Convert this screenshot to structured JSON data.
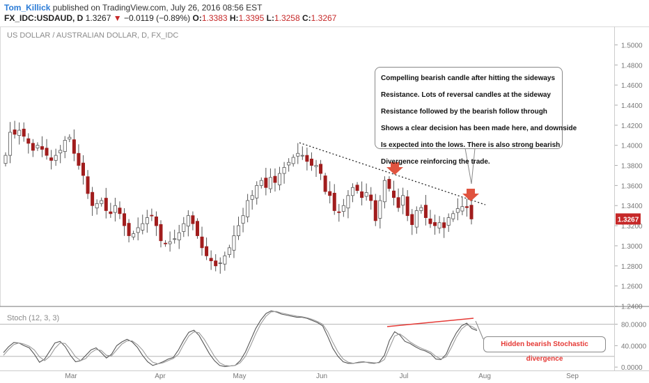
{
  "header": {
    "author": "Tom_Killick",
    "published": " published on TradingView.com, July 26, 2016 08:56 EST",
    "symbol": "FX_IDC:USDAUD, D",
    "last": "1.3267",
    "arrow": "▼",
    "change": "−0.0119 (−0.89%)",
    "o_label": "O:",
    "o_value": "1.3383",
    "h_label": "H:",
    "h_value": "1.3395",
    "l_label": "L:",
    "l_value": "1.3258",
    "c_label": "C:",
    "c_value": "1.3267"
  },
  "annotation": {
    "lines": [
      "Compelling bearish candle after hitting the sideways",
      "Resistance. Lots of reversal candles at the sideway",
      "Resistance followed by the bearish follow through",
      "Shows a clear decision has been made here, and downside",
      "Is expected into the lows. There is also strong bearish",
      "Divergence reinforcing the trade."
    ]
  },
  "stoch_note": "Hidden bearish Stochastic divergence",
  "colors": {
    "up_body": "#ffffff",
    "down_body": "#a11d1d",
    "wick": "#555555",
    "price_tag": "#c62828",
    "arrow": "#e0533f",
    "divergence_line": "#e53935",
    "stoch_k": "#555555",
    "stoch_d": "#9a9a9a"
  },
  "chart_data": [
    {
      "type": "candlestick",
      "title": "US DOLLAR / AUSTRALIAN DOLLAR, D, FX_IDC",
      "ylim": [
        1.24,
        1.51
      ],
      "y_ticks": [
        "1.5000",
        "1.4800",
        "1.4600",
        "1.4400",
        "1.4200",
        "1.4000",
        "1.3800",
        "1.3600",
        "1.3400",
        "1.3200",
        "1.3000",
        "1.2800",
        "1.2600",
        "1.2400"
      ],
      "x_ticks": [
        "Mar",
        "Apr",
        "May",
        "Jun",
        "Jul",
        "Aug",
        "Sep"
      ],
      "last_price_label": "1.3267",
      "closes": [
        1.39,
        1.413,
        1.411,
        1.415,
        1.409,
        1.402,
        1.395,
        1.4,
        1.396,
        1.39,
        1.385,
        1.39,
        1.395,
        1.405,
        1.408,
        1.392,
        1.38,
        1.37,
        1.352,
        1.34,
        1.342,
        1.345,
        1.335,
        1.332,
        1.34,
        1.332,
        1.32,
        1.31,
        1.312,
        1.318,
        1.322,
        1.328,
        1.33,
        1.32,
        1.305,
        1.302,
        1.304,
        1.307,
        1.313,
        1.322,
        1.33,
        1.322,
        1.31,
        1.298,
        1.29,
        1.285,
        1.28,
        1.283,
        1.29,
        1.298,
        1.31,
        1.32,
        1.33,
        1.345,
        1.35,
        1.36,
        1.365,
        1.358,
        1.368,
        1.363,
        1.372,
        1.378,
        1.383,
        1.388,
        1.392,
        1.39,
        1.384,
        1.38,
        1.38,
        1.372,
        1.354,
        1.35,
        1.335,
        1.333,
        1.34,
        1.35,
        1.358,
        1.355,
        1.348,
        1.353,
        1.345,
        1.325,
        1.345,
        1.365,
        1.357,
        1.348,
        1.338,
        1.35,
        1.33,
        1.321,
        1.335,
        1.338,
        1.328,
        1.322,
        1.32,
        1.323,
        1.318,
        1.328,
        1.332,
        1.337,
        1.339,
        1.338,
        1.3267
      ],
      "annotations": [
        "Compelling bearish candle after hitting the sideways",
        "Hidden bearish Stochastic divergence"
      ]
    },
    {
      "type": "line",
      "title": "Stoch (12, 3, 3)",
      "ylim": [
        -5,
        112
      ],
      "y_ticks": [
        "80.0000",
        "40.0000",
        "0.0000"
      ],
      "reference_lines": [
        80,
        20
      ],
      "series": [
        {
          "values": [
            27,
            38,
            46,
            45,
            40,
            36,
            24,
            9,
            15,
            30,
            45,
            48,
            38,
            22,
            10,
            12,
            22,
            32,
            36,
            27,
            17,
            24,
            40,
            47,
            52,
            47,
            37,
            22,
            10,
            3,
            6,
            10,
            15,
            18,
            32,
            50,
            65,
            69,
            59,
            42,
            25,
            12,
            3,
            1,
            2,
            3,
            12,
            28,
            50,
            72,
            88,
            100,
            105,
            103,
            99,
            97,
            95,
            93,
            93,
            91,
            87,
            83,
            77,
            57,
            35,
            20,
            10,
            7,
            7,
            9,
            10,
            8,
            7,
            9,
            22,
            50,
            66,
            60,
            48,
            44,
            38,
            33,
            30,
            25,
            15,
            14,
            24,
            46,
            64,
            77,
            82,
            72,
            68
          ]
        },
        {
          "values": [
            22,
            33,
            42,
            45,
            43,
            39,
            32,
            19,
            12,
            20,
            35,
            45,
            44,
            33,
            19,
            12,
            16,
            27,
            33,
            31,
            22,
            21,
            32,
            43,
            49,
            49,
            42,
            32,
            18,
            9,
            6,
            8,
            12,
            16,
            24,
            42,
            58,
            66,
            64,
            52,
            36,
            20,
            8,
            3,
            2,
            3,
            8,
            20,
            40,
            62,
            81,
            95,
            103,
            104,
            101,
            99,
            97,
            95,
            94,
            92,
            89,
            85,
            80,
            66,
            46,
            28,
            15,
            9,
            7,
            8,
            9,
            9,
            8,
            8,
            14,
            36,
            58,
            62,
            55,
            47,
            41,
            36,
            32,
            28,
            20,
            15,
            19,
            36,
            56,
            71,
            79,
            76,
            70
          ]
        }
      ]
    }
  ]
}
